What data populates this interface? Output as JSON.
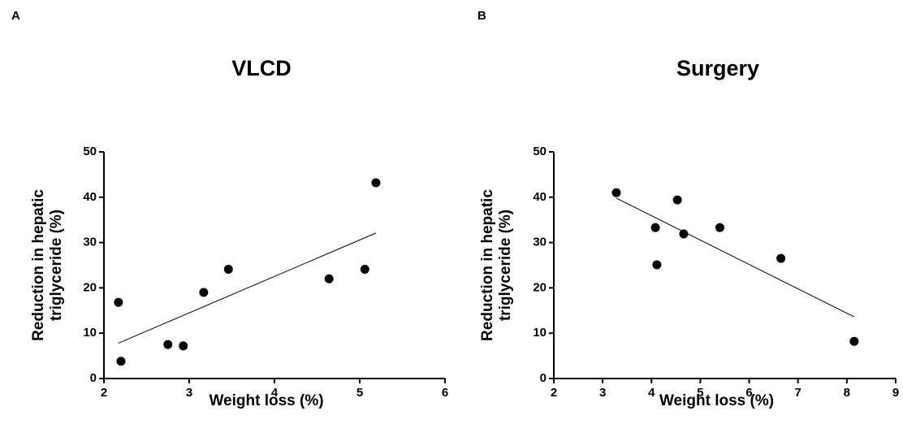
{
  "chart_data": [
    {
      "type": "scatter",
      "panel_label": "A",
      "title": "VLCD",
      "x_label": "Weight loss (%)",
      "y_label": [
        "Reduction in hepatic",
        "triglyceride (%)"
      ],
      "x": [
        2.17,
        2.2,
        2.75,
        2.93,
        3.17,
        3.46,
        4.64,
        5.06,
        5.19
      ],
      "values": [
        16.8,
        3.8,
        7.5,
        7.2,
        19,
        24.1,
        22,
        24.1,
        43.2
      ],
      "color": "#000000",
      "trendline": {
        "x": [
          2.17,
          5.19
        ],
        "y": [
          7.8,
          32.1
        ]
      },
      "xlim": [
        2,
        6
      ],
      "xticks": [
        2,
        3,
        4,
        5,
        6
      ],
      "ylim": [
        0,
        50
      ],
      "yticks": [
        0,
        10,
        20,
        30,
        40,
        50
      ]
    },
    {
      "type": "scatter",
      "panel_label": "B",
      "title": "Surgery",
      "x_label": "Weight loss (%)",
      "y_label": [
        "Reduction in hepatic",
        "triglyceride (%)"
      ],
      "x": [
        3.28,
        4.08,
        4.11,
        4.53,
        4.66,
        5.4,
        6.65,
        8.15
      ],
      "values": [
        41,
        33.3,
        25.1,
        39.4,
        31.9,
        33.3,
        26.5,
        8.2
      ],
      "color": "#000000",
      "trendline": {
        "x": [
          3.28,
          8.15
        ],
        "y": [
          39.8,
          13.6
        ]
      },
      "xlim": [
        2,
        9
      ],
      "xticks": [
        2,
        3,
        4,
        5,
        6,
        7,
        8,
        9
      ],
      "ylim": [
        0,
        50
      ],
      "yticks": [
        0,
        10,
        20,
        30,
        40,
        50
      ]
    }
  ]
}
